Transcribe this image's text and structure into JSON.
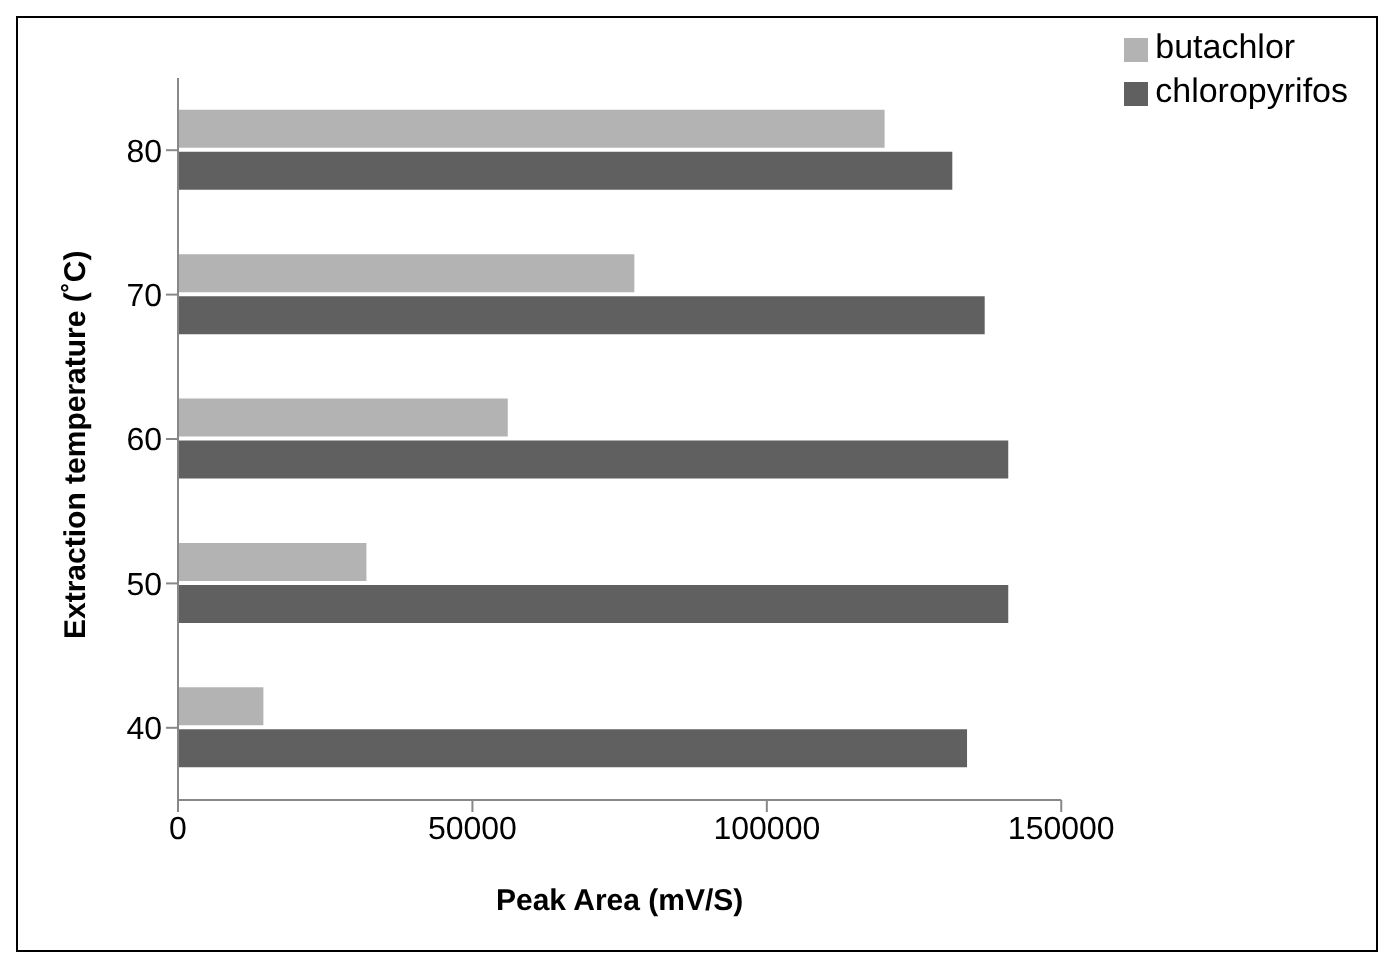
{
  "chart_data": {
    "type": "bar",
    "orientation": "horizontal",
    "xlabel": "Peak Area (mV/S)",
    "ylabel": "Extraction temperature (˚C)",
    "categories": [
      "80",
      "70",
      "60",
      "50",
      "40"
    ],
    "series": [
      {
        "name": "butachlor",
        "color": "#b3b3b3",
        "values": [
          120000,
          77500,
          56000,
          32000,
          14500
        ]
      },
      {
        "name": "chloropyrifos",
        "color": "#606060",
        "values": [
          131500,
          137000,
          141000,
          141000,
          134000
        ]
      }
    ],
    "xlim": [
      0,
      150000
    ],
    "xticks": [
      0,
      50000,
      100000,
      150000
    ],
    "grid": false,
    "legend": "top right"
  }
}
